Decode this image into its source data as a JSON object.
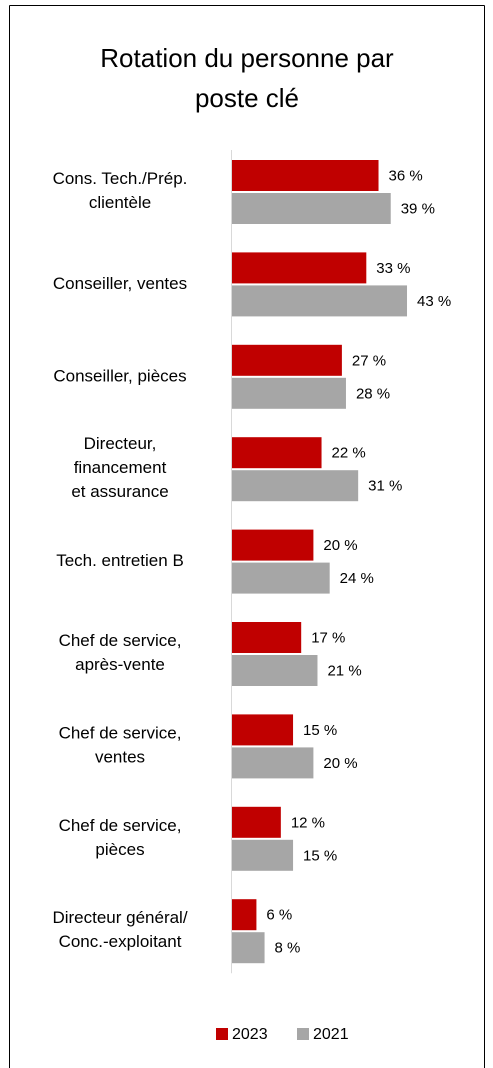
{
  "chart_data": {
    "type": "bar",
    "orientation": "horizontal",
    "title": "Rotation du personne par\nposte clé",
    "categories": [
      "Cons. Tech./Prép.\nclientèle",
      "Conseiller, ventes",
      "Conseiller, pièces",
      "Directeur,\nfinancement\net assurance",
      "Tech. entretien B",
      "Chef de service,\naprès-vente",
      "Chef de service,\nventes",
      "Chef de service,\npièces",
      "Directeur général/\nConc.-exploitant"
    ],
    "series": [
      {
        "name": "2023",
        "color": "#c00000",
        "values": [
          36,
          33,
          27,
          22,
          20,
          17,
          15,
          12,
          6
        ],
        "value_labels": [
          "36 %",
          "33 %",
          "27 %",
          "22 %",
          "20 %",
          "17 %",
          "15 %",
          "12 %",
          "6 %"
        ]
      },
      {
        "name": "2021",
        "color": "#a6a6a6",
        "values": [
          39,
          43,
          28,
          31,
          24,
          21,
          20,
          15,
          8
        ],
        "value_labels": [
          "39 %",
          "43 %",
          "28 %",
          "31 %",
          "24 %",
          "21 %",
          "20 %",
          "15 %",
          "8 %"
        ]
      }
    ],
    "legend": "bottom"
  }
}
